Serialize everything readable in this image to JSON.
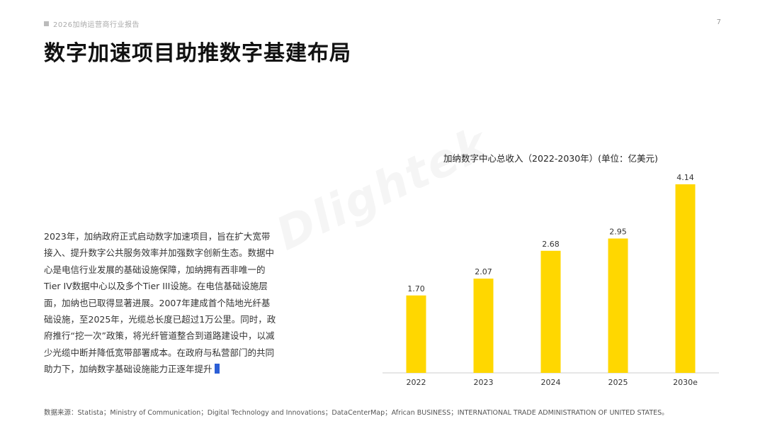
{
  "header": {
    "report_tag": "2026加纳运营商行业报告",
    "page_number": "7",
    "title": "数字加速项目助推数字基建布局"
  },
  "watermark": "Dlightek",
  "body": {
    "paragraph": "2023年，加纳政府正式启动数字加速项目，旨在扩大宽带接入、提升数字公共服务效率并加强数字创新生态。数据中心是电信行业发展的基础设施保障，加纳拥有西非唯一的Tier IV数据中心以及多个Tier III设施。在电信基础设施层面，加纳也已取得显著进展。2007年建成首个陆地光纤基础设施，至2025年，光缆总长度已超过1万公里。同时，政府推行“挖一次”政策，将光纤管道整合到道路建设中，以减少光缆中断并降低宽带部署成本。在政府与私营部门的共同助力下，加纳数字基础设施能力正逐年提升"
  },
  "chart_data": {
    "type": "bar",
    "title": "加纳数字中心总收入（2022-2030年）(单位：亿美元)",
    "categories": [
      "2022",
      "2023",
      "2024",
      "2025",
      "2030e"
    ],
    "values": [
      1.7,
      2.07,
      2.68,
      2.95,
      4.14
    ],
    "value_labels": [
      "1.70",
      "2.07",
      "2.68",
      "2.95",
      "4.14"
    ],
    "ylim": [
      0,
      4.14
    ],
    "bar_color": "#FFD700",
    "grid": false,
    "legend": "none"
  },
  "footer": {
    "source": "数据来源：Statista；Ministry of Communication；Digital Technology and Innovations；DataCenterMap；African BUSINESS；INTERNATIONAL TRADE ADMINISTRATION OF UNITED STATES。"
  }
}
